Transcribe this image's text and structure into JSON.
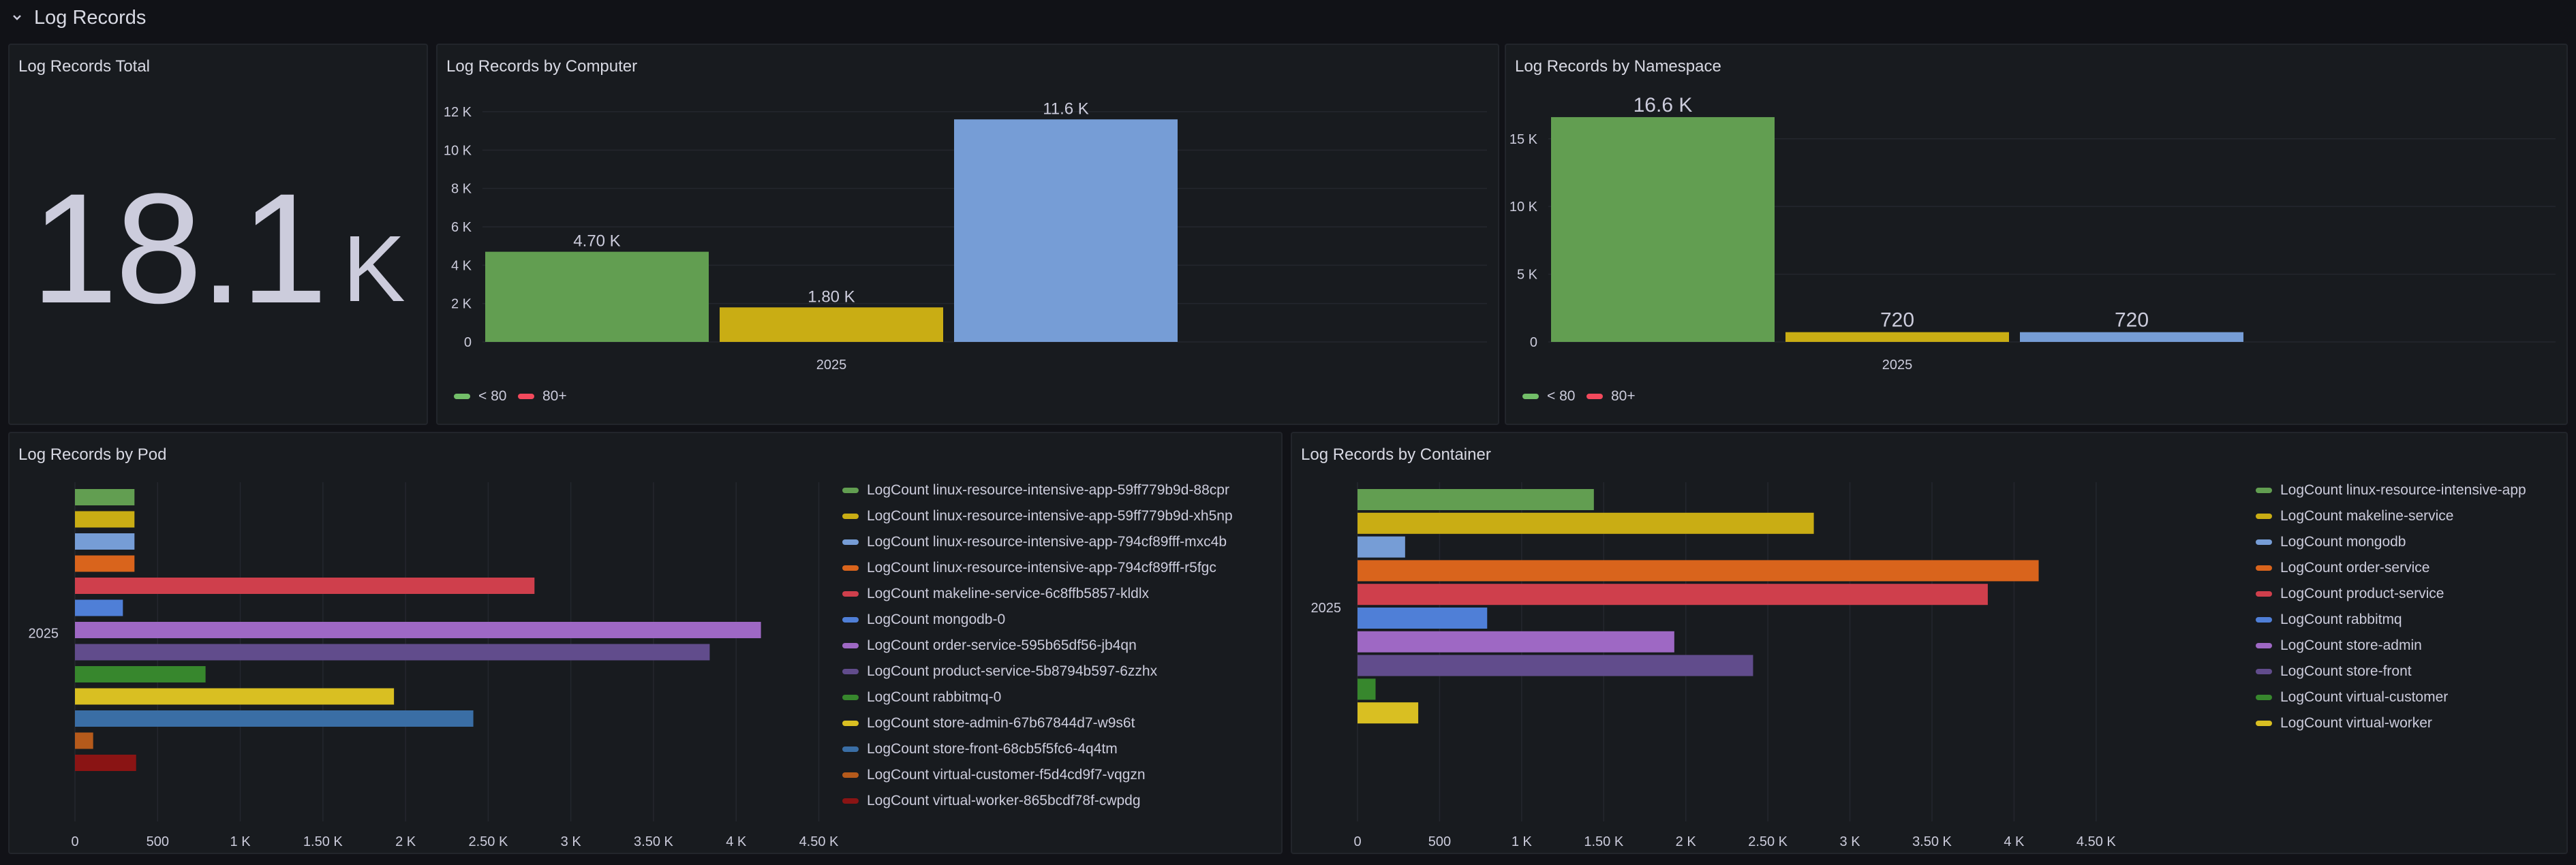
{
  "row": {
    "title": "Log Records",
    "icon": "chevron-down-icon"
  },
  "total": {
    "title": "Log Records Total",
    "value": "18.1",
    "unit": "K"
  },
  "computer": {
    "title": "Log Records by Computer",
    "legend": [
      {
        "label": "< 80",
        "color": "#73bf69"
      },
      {
        "label": "80+",
        "color": "#f2495c"
      }
    ],
    "chart_data": {
      "type": "bar",
      "categories": [
        "2025"
      ],
      "series": [
        {
          "values": [
            4700
          ],
          "label": "4.70 K",
          "color": "#629e51"
        },
        {
          "values": [
            1800
          ],
          "label": "1.80 K",
          "color": "#c9ad14"
        },
        {
          "values": [
            11600
          ],
          "label": "11.6 K",
          "color": "#769dd6"
        }
      ],
      "yticks": [
        0,
        2000,
        4000,
        6000,
        8000,
        10000,
        12000
      ],
      "ytick_labels": [
        "0",
        "2 K",
        "4 K",
        "6 K",
        "8 K",
        "10 K",
        "12 K"
      ],
      "ylim": [
        0,
        12000
      ]
    }
  },
  "namespace": {
    "title": "Log Records by Namespace",
    "legend": [
      {
        "label": "< 80",
        "color": "#73bf69"
      },
      {
        "label": "80+",
        "color": "#f2495c"
      }
    ],
    "chart_data": {
      "type": "bar",
      "categories": [
        "2025"
      ],
      "series": [
        {
          "values": [
            16600
          ],
          "label": "16.6 K",
          "color": "#629e51"
        },
        {
          "values": [
            720
          ],
          "label": "720",
          "color": "#c9ad14"
        },
        {
          "values": [
            720
          ],
          "label": "720",
          "color": "#769dd6"
        }
      ],
      "yticks": [
        0,
        5000,
        10000,
        15000
      ],
      "ytick_labels": [
        "0",
        "5 K",
        "10 K",
        "15 K"
      ],
      "ylim": [
        0,
        17000
      ]
    }
  },
  "pod": {
    "title": "Log Records by Pod",
    "chart_data": {
      "type": "bar",
      "orientation": "horizontal",
      "categories": [
        "2025"
      ],
      "xticks": [
        0,
        500,
        1000,
        1500,
        2000,
        2500,
        3000,
        3500,
        4000,
        4500
      ],
      "xtick_labels": [
        "0",
        "500",
        "1 K",
        "1.50 K",
        "2 K",
        "2.50 K",
        "3 K",
        "3.50 K",
        "4 K",
        "4.50 K"
      ],
      "xlim": [
        0,
        4700
      ],
      "series": [
        {
          "name": "LogCount linux-resource-intensive-app-59ff779b9d-88cpr",
          "values": [
            360
          ],
          "color": "#629e51"
        },
        {
          "name": "LogCount linux-resource-intensive-app-59ff779b9d-xh5np",
          "values": [
            360
          ],
          "color": "#c9ad14"
        },
        {
          "name": "LogCount linux-resource-intensive-app-794cf89fff-mxc4b",
          "values": [
            360
          ],
          "color": "#769dd6"
        },
        {
          "name": "LogCount linux-resource-intensive-app-794cf89fff-r5fgc",
          "values": [
            360
          ],
          "color": "#d9641c"
        },
        {
          "name": "LogCount makeline-service-6c8ffb5857-kldlx",
          "values": [
            2780
          ],
          "color": "#cf3f4c"
        },
        {
          "name": "LogCount mongodb-0",
          "values": [
            290
          ],
          "color": "#4f7fd7"
        },
        {
          "name": "LogCount order-service-595b65df56-jb4qn",
          "values": [
            4150
          ],
          "color": "#9e68c4"
        },
        {
          "name": "LogCount product-service-5b8794b597-6zzhx",
          "values": [
            3840
          ],
          "color": "#614c8c"
        },
        {
          "name": "LogCount rabbitmq-0",
          "values": [
            790
          ],
          "color": "#37872d"
        },
        {
          "name": "LogCount store-admin-67b67844d7-w9s6t",
          "values": [
            1930
          ],
          "color": "#d9bf22"
        },
        {
          "name": "LogCount store-front-68cb5f5fc6-4q4tm",
          "values": [
            2410
          ],
          "color": "#3a6ea5"
        },
        {
          "name": "LogCount virtual-customer-f5d4cd9f7-vqgzn",
          "values": [
            110
          ],
          "color": "#b55a1b"
        },
        {
          "name": "LogCount virtual-worker-865bcdf78f-cwpdg",
          "values": [
            370
          ],
          "color": "#8a1414"
        }
      ]
    }
  },
  "container": {
    "title": "Log Records by Container",
    "chart_data": {
      "type": "bar",
      "orientation": "horizontal",
      "categories": [
        "2025"
      ],
      "xticks": [
        0,
        500,
        1000,
        1500,
        2000,
        2500,
        3000,
        3500,
        4000,
        4500
      ],
      "xtick_labels": [
        "0",
        "500",
        "1 K",
        "1.50 K",
        "2 K",
        "2.50 K",
        "3 K",
        "3.50 K",
        "4 K",
        "4.50 K"
      ],
      "xlim": [
        0,
        4700
      ],
      "series": [
        {
          "name": "LogCount linux-resource-intensive-app",
          "values": [
            1440
          ],
          "color": "#629e51"
        },
        {
          "name": "LogCount makeline-service",
          "values": [
            2780
          ],
          "color": "#c9ad14"
        },
        {
          "name": "LogCount mongodb",
          "values": [
            290
          ],
          "color": "#769dd6"
        },
        {
          "name": "LogCount order-service",
          "values": [
            4150
          ],
          "color": "#d9641c"
        },
        {
          "name": "LogCount product-service",
          "values": [
            3840
          ],
          "color": "#cf3f4c"
        },
        {
          "name": "LogCount rabbitmq",
          "values": [
            790
          ],
          "color": "#4f7fd7"
        },
        {
          "name": "LogCount store-admin",
          "values": [
            1930
          ],
          "color": "#9e68c4"
        },
        {
          "name": "LogCount store-front",
          "values": [
            2410
          ],
          "color": "#614c8c"
        },
        {
          "name": "LogCount virtual-customer",
          "values": [
            110
          ],
          "color": "#37872d"
        },
        {
          "name": "LogCount virtual-worker",
          "values": [
            370
          ],
          "color": "#d9bf22"
        }
      ]
    }
  }
}
